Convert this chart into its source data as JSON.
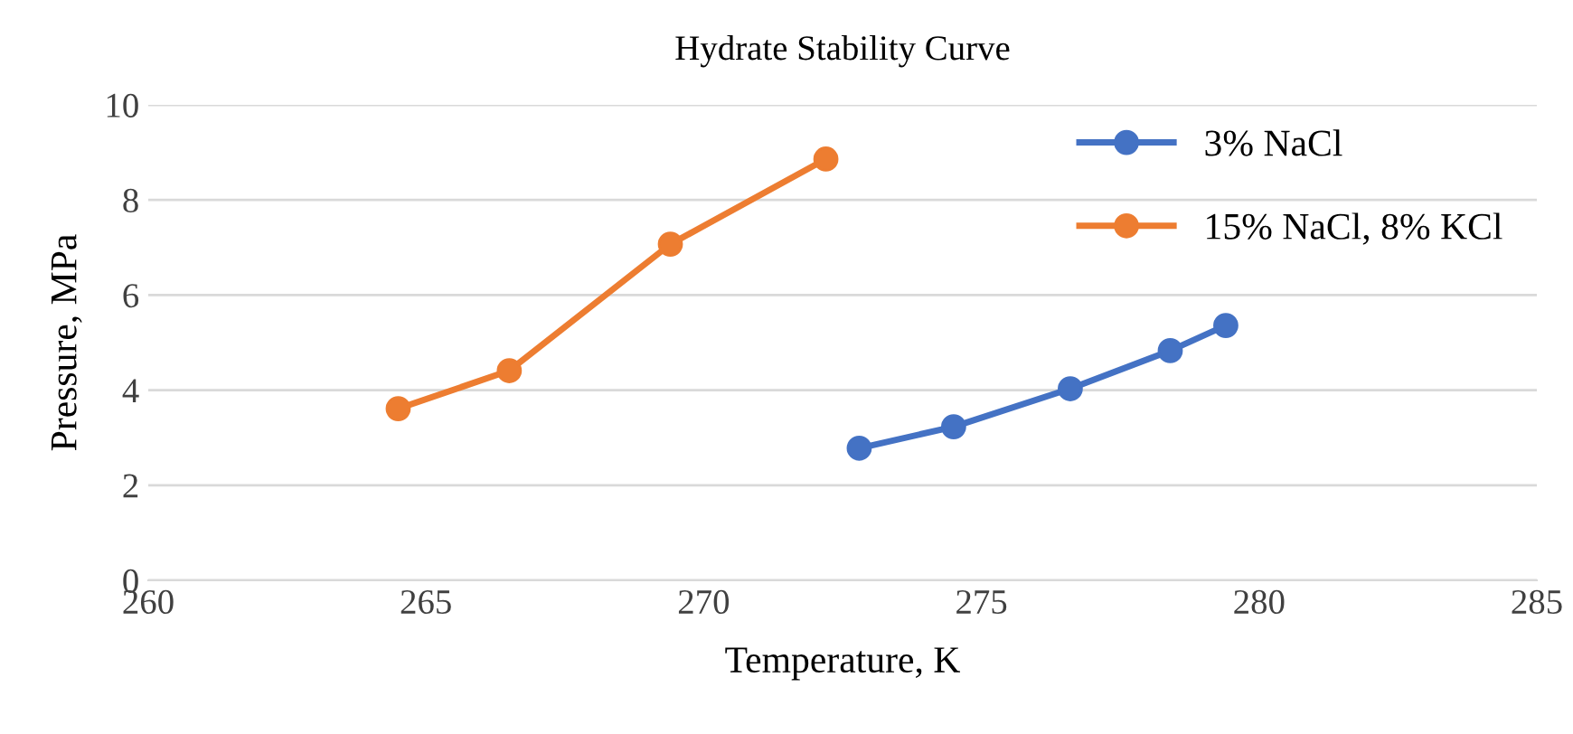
{
  "chart_data": {
    "type": "line",
    "title": "Hydrate Stability Curve",
    "xlabel": "Temperature, K",
    "ylabel": "Pressure, MPa",
    "xlim": [
      260,
      285
    ],
    "xticks": [
      260,
      265,
      270,
      275,
      280,
      285
    ],
    "ylim": [
      0,
      10
    ],
    "yticks": [
      0,
      2,
      4,
      6,
      8,
      10
    ],
    "grid": "y",
    "legend": "top right",
    "marker": "circle",
    "line_style": "solid",
    "series": [
      {
        "name": "3% NaCl",
        "color": "#4472c4",
        "x": [
          272.8,
          274.5,
          276.6,
          278.4,
          279.4
        ],
        "values": [
          2.78,
          3.23,
          4.03,
          4.83,
          5.36
        ]
      },
      {
        "name": "15% NaCl, 8% KCl",
        "color": "#ed7d31",
        "x": [
          264.5,
          266.5,
          269.4,
          272.2
        ],
        "values": [
          3.61,
          4.41,
          7.07,
          8.86
        ]
      }
    ]
  }
}
